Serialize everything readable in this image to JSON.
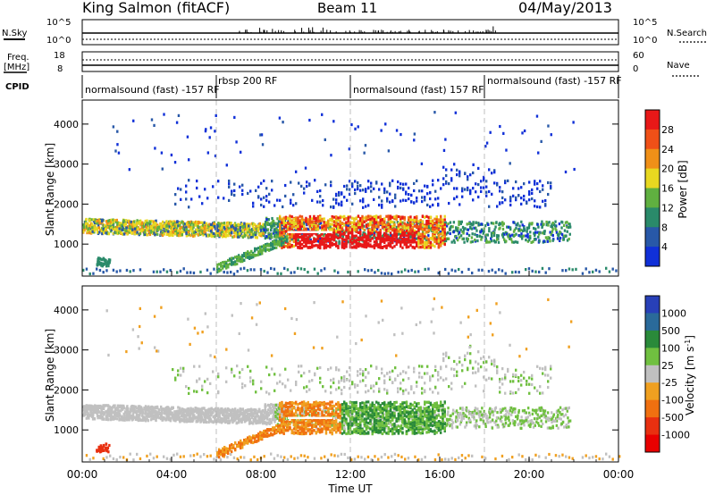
{
  "header": {
    "station": "King Salmon (fitACF)",
    "beam": "Beam 11",
    "date": "04/May/2013"
  },
  "panels": {
    "nsky_label": "N.Sky",
    "nsky_ticks": [
      "10^5",
      "10^0"
    ],
    "nsearch_label": "N.Search",
    "nsearch_ticks": [
      "10^5",
      "10^0"
    ],
    "freq_label": "Freq.",
    "freq_unit": "[MHz]",
    "freq_ticks": [
      "18",
      "8"
    ],
    "nave_label": "Nave",
    "nave_ticks": [
      "60",
      "0"
    ],
    "cpid_label": "CPID",
    "cpid_segments": [
      {
        "label": "normalsound (fast) -157 RF",
        "start": 0,
        "end": 6
      },
      {
        "label": "rbsp 200 RF",
        "start": 6,
        "end": 12
      },
      {
        "label": "normalsound (fast) 157 RF",
        "start": 12,
        "end": 18
      },
      {
        "label": "normalsound (fast) -157 RF",
        "start": 18,
        "end": 24
      }
    ]
  },
  "chart_data": [
    {
      "type": "heatmap",
      "ylabel": "Slant Range [km]",
      "ylim": [
        200,
        4600
      ],
      "yticks": [
        1000,
        2000,
        3000,
        4000
      ],
      "xlim": [
        0,
        24
      ],
      "colorbar_label": "Power [dB]",
      "colorbar_ticks": [
        "4",
        "8",
        "12",
        "16",
        "20",
        "24",
        "28"
      ],
      "colors": [
        "#1030d8",
        "#2858a8",
        "#2a8a6a",
        "#60b040",
        "#e8d820",
        "#f09018",
        "#f05018",
        "#e81818"
      ]
    },
    {
      "type": "heatmap",
      "ylabel": "Slant Range [km]",
      "ylim": [
        200,
        4600
      ],
      "yticks": [
        1000,
        2000,
        3000,
        4000
      ],
      "xlim": [
        0,
        24
      ],
      "colorbar_label": "Velocity [m s",
      "colorbar_label_sup": "-1",
      "colorbar_label_end": "]",
      "colorbar_ticks": [
        "1000",
        "500",
        "100",
        "25",
        "-25",
        "-100",
        "-500",
        "-1000"
      ],
      "colors": [
        "#2840b8",
        "#2a6a9a",
        "#2a8a3a",
        "#70c040",
        "#c0c0c0",
        "#f0a020",
        "#f07010",
        "#e83010",
        "#e80000"
      ]
    }
  ],
  "time_axis": {
    "label": "Time UT",
    "ticks": [
      "00:00",
      "04:00",
      "08:00",
      "12:00",
      "16:00",
      "20:00",
      "00:00"
    ]
  }
}
